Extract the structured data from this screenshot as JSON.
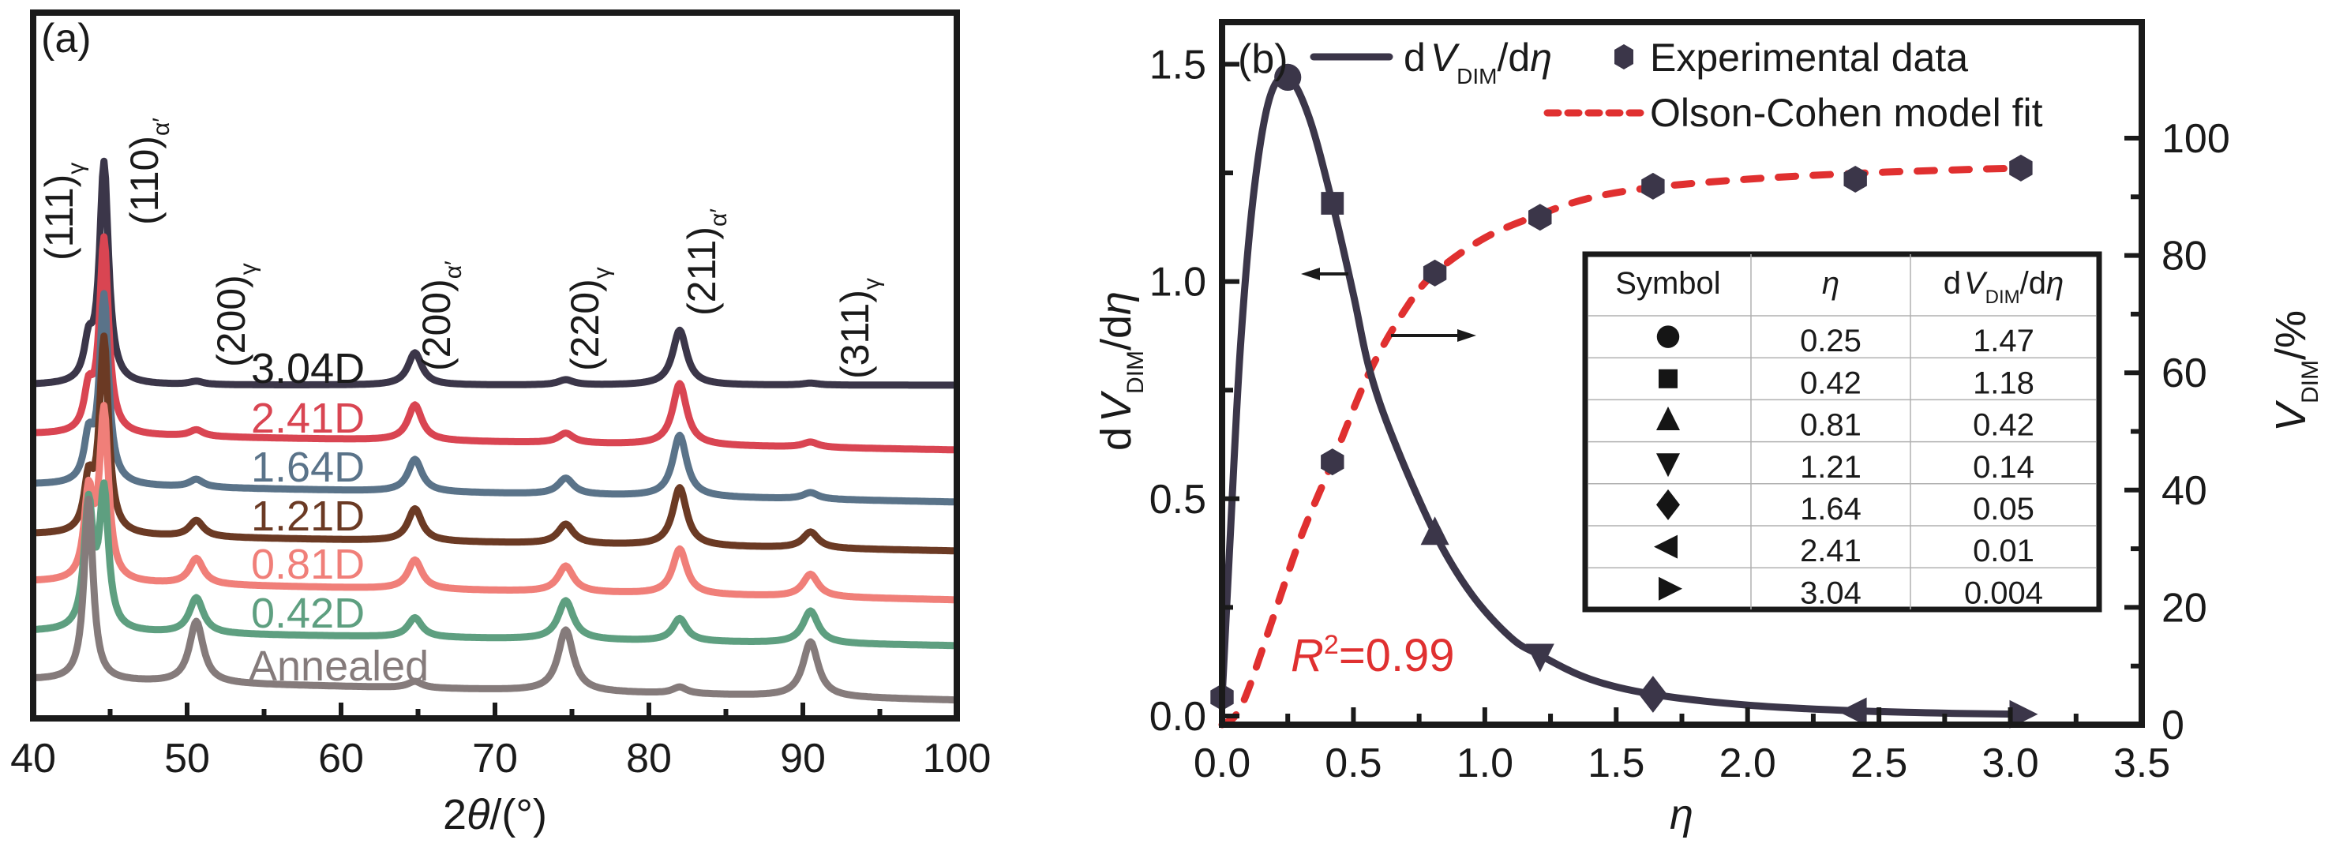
{
  "chart_data": [
    {
      "panel": "(a)",
      "type": "line",
      "xlabel": "2θ/(°)",
      "ylabel": "",
      "xlim": [
        40,
        100
      ],
      "xticks": [
        40,
        50,
        60,
        70,
        80,
        90,
        100
      ],
      "yticks_visible": false,
      "grid": false,
      "peaks": [
        {
          "hkl": "(111)",
          "phase": "γ",
          "two_theta": 43.6
        },
        {
          "hkl": "(110)",
          "phase": "α′",
          "two_theta": 44.6
        },
        {
          "hkl": "(200)",
          "phase": "γ",
          "two_theta": 50.6
        },
        {
          "hkl": "(200)",
          "phase": "α′",
          "two_theta": 64.8
        },
        {
          "hkl": "(220)",
          "phase": "γ",
          "two_theta": 74.6
        },
        {
          "hkl": "(211)",
          "phase": "α′",
          "two_theta": 82.0
        },
        {
          "hkl": "(311)",
          "phase": "γ",
          "two_theta": 90.5
        }
      ],
      "series": [
        {
          "name": "3.04D",
          "color": "#3b3649",
          "offset": 6,
          "intensities": {
            "111γ": 0.55,
            "110α": 3.4,
            "200γ": 0.05,
            "200α": 0.5,
            "220γ": 0.08,
            "211α": 0.85,
            "311γ": 0.03
          }
        },
        {
          "name": "2.41D",
          "color": "#d94552",
          "offset": 5,
          "intensities": {
            "111γ": 0.6,
            "110α": 3.0,
            "200γ": 0.1,
            "200α": 0.55,
            "220γ": 0.15,
            "211α": 0.95,
            "311γ": 0.08
          }
        },
        {
          "name": "1.64D",
          "color": "#5a7389",
          "offset": 4,
          "intensities": {
            "111γ": 0.65,
            "110α": 2.9,
            "200γ": 0.12,
            "200α": 0.5,
            "220γ": 0.25,
            "211α": 0.95,
            "311γ": 0.1
          }
        },
        {
          "name": "1.21D",
          "color": "#6b3a24",
          "offset": 3,
          "intensities": {
            "111γ": 0.75,
            "110α": 3.0,
            "200γ": 0.25,
            "200α": 0.5,
            "220γ": 0.3,
            "211α": 0.9,
            "311γ": 0.25
          }
        },
        {
          "name": "0.81D",
          "color": "#f07f79",
          "offset": 2,
          "intensities": {
            "111γ": 1.3,
            "110α": 2.6,
            "200γ": 0.4,
            "200α": 0.45,
            "220γ": 0.4,
            "211α": 0.7,
            "311γ": 0.35
          }
        },
        {
          "name": "0.42D",
          "color": "#5e9f80",
          "offset": 1,
          "intensities": {
            "111γ": 1.9,
            "110α": 2.1,
            "200γ": 0.55,
            "200α": 0.3,
            "220γ": 0.6,
            "211α": 0.35,
            "311γ": 0.5
          }
        },
        {
          "name": "Annealed",
          "color": "#857b7b",
          "offset": 0,
          "intensities": {
            "111γ": 2.8,
            "110α": 0.0,
            "200γ": 0.95,
            "200α": 0.1,
            "220γ": 0.95,
            "211α": 0.1,
            "311γ": 0.85
          }
        }
      ]
    },
    {
      "panel": "(b)",
      "type": "line",
      "xlabel": "η",
      "ylabel_left": "dV_DIM/dη",
      "ylabel_right": "V_DIM/%",
      "xlim": [
        0,
        3.5
      ],
      "ylim_left": [
        0,
        1.5
      ],
      "ylim_right": [
        0,
        100
      ],
      "xticks": [
        "0.0",
        "0.5",
        "1.0",
        "1.5",
        "2.0",
        "2.5",
        "3.0",
        "3.5"
      ],
      "yticks_left": [
        "0.0",
        "0.5",
        "1.0",
        "1.5"
      ],
      "yticks_right": [
        "0",
        "20",
        "40",
        "60",
        "80",
        "100"
      ],
      "grid": false,
      "legend_position": "top",
      "series": [
        {
          "name": "dV_DIM/dη",
          "axis": "left",
          "style": "solid",
          "color": "#3b3649",
          "x": [
            0.0,
            0.03,
            0.07,
            0.12,
            0.18,
            0.25,
            0.33,
            0.42,
            0.5,
            0.56,
            0.65,
            0.81,
            0.95,
            1.1,
            1.21,
            1.4,
            1.64,
            2.0,
            2.41,
            2.8,
            3.04
          ],
          "y": [
            0.04,
            0.4,
            0.85,
            1.2,
            1.42,
            1.47,
            1.38,
            1.18,
            0.97,
            0.8,
            0.64,
            0.42,
            0.28,
            0.18,
            0.14,
            0.085,
            0.05,
            0.025,
            0.012,
            0.006,
            0.004
          ]
        },
        {
          "name": "Experimental data",
          "axis": "right",
          "marker": "hexagon",
          "color": "#3b3649",
          "x": [
            0.0,
            0.42,
            0.81,
            1.21,
            1.64,
            2.41,
            3.04
          ],
          "y": [
            4.7,
            44.8,
            77.0,
            86.5,
            91.8,
            93.0,
            94.9
          ]
        },
        {
          "name": "Olson-Cohen model fit",
          "axis": "right",
          "style": "dashed",
          "color": "#e03030",
          "x": [
            0.0,
            0.05,
            0.1,
            0.2,
            0.3,
            0.42,
            0.56,
            0.7,
            0.81,
            1.0,
            1.21,
            1.4,
            1.64,
            2.0,
            2.41,
            2.8,
            3.04
          ],
          "y": [
            0.0,
            1.5,
            6,
            19,
            32,
            44.8,
            60,
            71,
            77,
            83,
            87,
            89.8,
            91.6,
            93,
            94,
            94.6,
            94.9
          ]
        },
        {
          "name": "dV_DIM/dη markers",
          "axis": "left",
          "markers": [
            "circle",
            "square",
            "triangle-up",
            "triangle-down",
            "diamond",
            "triangle-left",
            "triangle-right"
          ],
          "color": "#3b3649",
          "x": [
            0.25,
            0.42,
            0.81,
            1.21,
            1.64,
            2.41,
            3.04
          ],
          "y": [
            1.47,
            1.18,
            0.42,
            0.14,
            0.05,
            0.01,
            0.004
          ]
        }
      ],
      "annotations": {
        "r_squared": "=0.99",
        "r_squared_prefix": "R",
        "r_squared_sup": "2"
      },
      "table": {
        "headers": [
          "Symbol",
          "η",
          "dV_DIM/dη"
        ],
        "rows": [
          {
            "symbol": "circle",
            "eta": "0.25",
            "dv": "1.47"
          },
          {
            "symbol": "square",
            "eta": "0.42",
            "dv": "1.18"
          },
          {
            "symbol": "triangle-up",
            "eta": "0.81",
            "dv": "0.42"
          },
          {
            "symbol": "triangle-down",
            "eta": "1.21",
            "dv": "0.14"
          },
          {
            "symbol": "diamond",
            "eta": "1.64",
            "dv": "0.05"
          },
          {
            "symbol": "triangle-left",
            "eta": "2.41",
            "dv": "0.01"
          },
          {
            "symbol": "triangle-right",
            "eta": "3.04",
            "dv": "0.004"
          }
        ]
      }
    }
  ],
  "labels": {
    "panel_a": "(a)",
    "panel_b": "(b)",
    "a_xlabel_prefix": "2",
    "a_xlabel_theta": "θ",
    "a_xlabel_suffix": "/(°)",
    "b_xlabel": "η",
    "legend_dv_d": "d",
    "legend_dv_V": "V",
    "legend_dv_sub": "DIM",
    "legend_dv_tail": "/d",
    "legend_dv_eta": "η",
    "legend_exp": "Experimental data",
    "legend_fit": "Olson-Cohen model fit",
    "ylabel_left_d": "d",
    "ylabel_left_V": "V",
    "ylabel_left_sub": "DIM",
    "ylabel_left_tail": "/d",
    "ylabel_left_eta": "η",
    "ylabel_right_V": "V",
    "ylabel_right_sub": "DIM",
    "ylabel_right_tail": "/%",
    "table_symbol": "Symbol",
    "table_eta": "η",
    "table_dv_d": "d",
    "table_dv_V": "V",
    "table_dv_sub": "DIM",
    "table_dv_tail": "/d",
    "table_dv_eta": "η"
  }
}
